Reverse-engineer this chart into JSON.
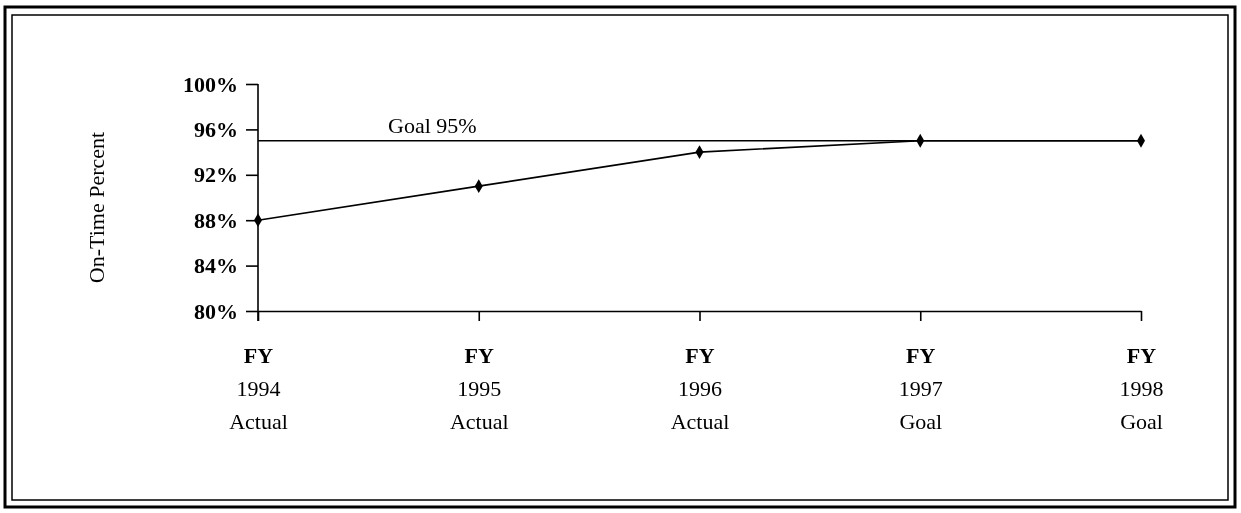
{
  "chart_data": {
    "type": "line",
    "ylabel": "On-Time Percent",
    "categories": [
      "FY\n1994\nActual",
      "FY\n1995\nActual",
      "FY\n1996\nActual",
      "FY\n1997\nGoal",
      "FY\n1998\nGoal"
    ],
    "series": [
      {
        "color": "#000000",
        "values": [
          88,
          91,
          94,
          95,
          95
        ]
      }
    ],
    "ylim": [
      80,
      100
    ],
    "yticks": [
      {
        "value": 80,
        "label": "80%"
      },
      {
        "value": 84,
        "label": "84%"
      },
      {
        "value": 88,
        "label": "88%"
      },
      {
        "value": 92,
        "label": "92%"
      },
      {
        "value": 96,
        "label": "96%"
      },
      {
        "value": 100,
        "label": "100%"
      }
    ],
    "ref_lines": [
      {
        "axis": "y",
        "value": 95,
        "label": "Goal 95%",
        "color": "#000000"
      }
    ],
    "marker": "diamond",
    "line_style": "solid"
  }
}
